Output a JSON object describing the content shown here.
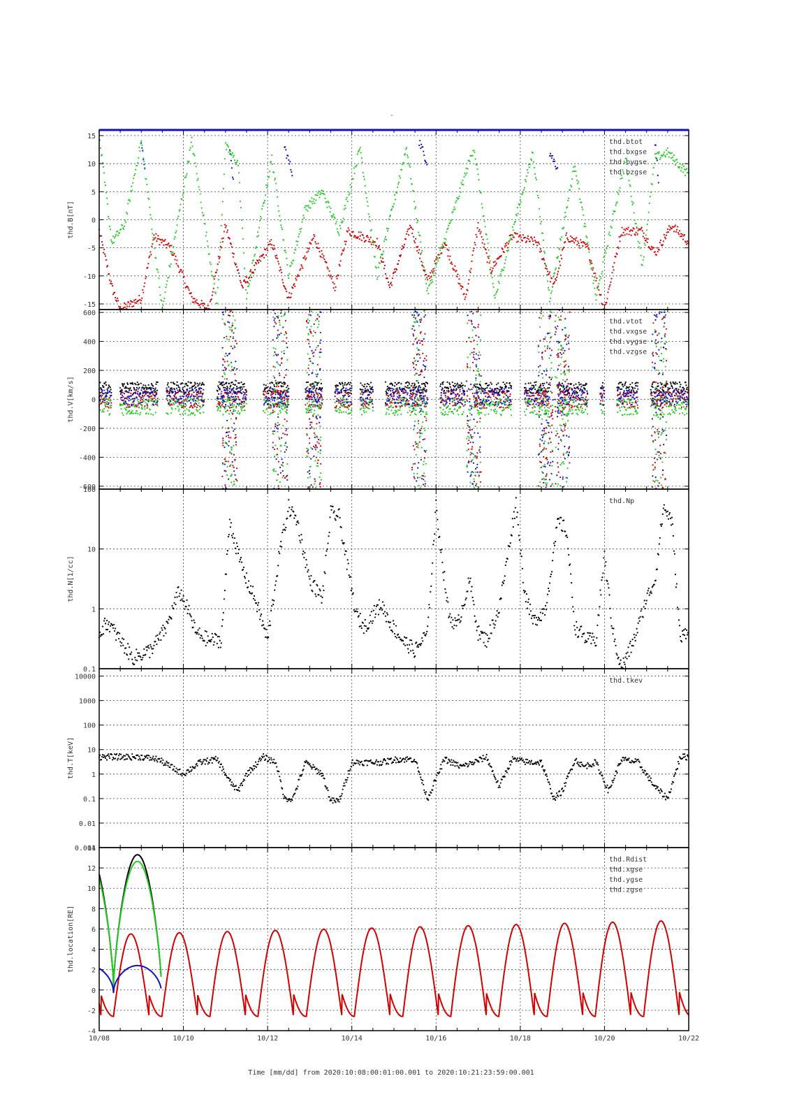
{
  "page_marker": "-",
  "colors": {
    "black": "#000000",
    "red": "#d40000",
    "green": "#22cc22",
    "blue": "#1010c8"
  },
  "x_axis": {
    "label": "Time [mm/dd]  from 2020:10:08:00:01:00.001  to  2020:10:21:23:59:00.001",
    "ticks": [
      "10/08",
      "10/10",
      "10/12",
      "10/14",
      "10/16",
      "10/18",
      "10/20",
      "10/22"
    ],
    "range_days": [
      0,
      14
    ]
  },
  "chart_data": [
    {
      "type": "scatter",
      "ylabel": "thd.B[nT]",
      "yscale": "linear",
      "ylim": [
        -16,
        16
      ],
      "yticks": [
        15,
        10,
        5,
        0,
        -5,
        -10,
        -15
      ],
      "legend": [
        "thd.btot",
        "thd.bxgse",
        "thd.bygse",
        "thd.bzgse"
      ],
      "series": [
        {
          "name": "thd.btot",
          "color": "black"
        },
        {
          "name": "thd.bxgse",
          "color": "red",
          "pattern": "descending_ramps",
          "points": [
            [
              0.0,
              -2
            ],
            [
              0.3,
              -12
            ],
            [
              0.5,
              -16
            ],
            [
              1.0,
              -14
            ],
            [
              1.3,
              -3
            ],
            [
              1.7,
              -5
            ],
            [
              2.2,
              -14
            ],
            [
              2.6,
              -16
            ],
            [
              3.0,
              -1
            ],
            [
              3.4,
              -12
            ],
            [
              4.1,
              -4
            ],
            [
              4.5,
              -14
            ],
            [
              5.1,
              -3
            ],
            [
              5.6,
              -12
            ],
            [
              5.9,
              -2
            ],
            [
              6.6,
              -4
            ],
            [
              6.9,
              -12
            ],
            [
              7.4,
              -1
            ],
            [
              7.8,
              -11
            ],
            [
              8.2,
              -4
            ],
            [
              8.7,
              -14
            ],
            [
              9.0,
              -1
            ],
            [
              9.3,
              -9
            ],
            [
              9.8,
              -3
            ],
            [
              10.4,
              -4
            ],
            [
              10.8,
              -12
            ],
            [
              11.1,
              -3
            ],
            [
              11.6,
              -5
            ],
            [
              12.0,
              -16
            ],
            [
              12.4,
              -2
            ],
            [
              12.9,
              -2
            ],
            [
              13.2,
              -6
            ],
            [
              13.6,
              -1
            ],
            [
              14.0,
              -4
            ]
          ]
        },
        {
          "name": "thd.bygse",
          "color": "blue",
          "pattern": "bursts",
          "points": [
            [
              1.0,
              13
            ],
            [
              1.1,
              9
            ],
            [
              3.1,
              12
            ],
            [
              3.2,
              6
            ],
            [
              4.1,
              14
            ],
            [
              4.4,
              13
            ],
            [
              4.6,
              8
            ],
            [
              6.7,
              14
            ],
            [
              7.6,
              14
            ],
            [
              7.8,
              10
            ],
            [
              10.7,
              12
            ],
            [
              10.9,
              9
            ],
            [
              13.2,
              14
            ],
            [
              13.3,
              6
            ]
          ]
        },
        {
          "name": "thd.bzgse",
          "color": "green",
          "pattern": "rising_ramps",
          "points": [
            [
              0.0,
              15
            ],
            [
              0.3,
              -4
            ],
            [
              0.6,
              -1
            ],
            [
              1.0,
              14
            ],
            [
              1.5,
              -16
            ],
            [
              2.2,
              14
            ],
            [
              2.8,
              -15
            ],
            [
              3.0,
              13
            ],
            [
              3.3,
              10
            ],
            [
              3.5,
              -14
            ],
            [
              4.1,
              11
            ],
            [
              4.5,
              -10
            ],
            [
              4.9,
              2
            ],
            [
              5.3,
              5
            ],
            [
              5.7,
              -2
            ],
            [
              6.2,
              13
            ],
            [
              6.6,
              -10
            ],
            [
              7.3,
              13
            ],
            [
              7.8,
              -13
            ],
            [
              8.4,
              1
            ],
            [
              8.9,
              13
            ],
            [
              9.4,
              -14
            ],
            [
              10.3,
              12
            ],
            [
              10.7,
              -14
            ],
            [
              11.3,
              10
            ],
            [
              11.8,
              -14
            ],
            [
              12.5,
              11
            ],
            [
              12.9,
              -8
            ],
            [
              13.2,
              11
            ],
            [
              13.5,
              12
            ],
            [
              14.0,
              8
            ]
          ]
        }
      ]
    },
    {
      "type": "scatter",
      "ylabel": "thd.V[km/s]",
      "yscale": "linear",
      "ylim": [
        -620,
        620
      ],
      "yticks": [
        600,
        400,
        200,
        0,
        -200,
        -400,
        -600
      ],
      "legend": [
        "thd.vtot",
        "thd.vxgse",
        "thd.vygse",
        "thd.vzgse"
      ],
      "segments": [
        [
          0.0,
          0.3
        ],
        [
          0.5,
          1.4
        ],
        [
          1.6,
          2.5
        ],
        [
          2.8,
          3.5
        ],
        [
          3.9,
          4.5
        ],
        [
          4.9,
          5.3
        ],
        [
          5.6,
          6.0
        ],
        [
          6.2,
          6.5
        ],
        [
          6.8,
          7.8
        ],
        [
          8.1,
          8.7
        ],
        [
          8.9,
          9.8
        ],
        [
          10.1,
          10.7
        ],
        [
          10.9,
          11.6
        ],
        [
          11.9,
          12.0
        ],
        [
          12.3,
          12.8
        ],
        [
          13.1,
          14.0
        ]
      ],
      "bursts": [
        [
          3.1,
          620
        ],
        [
          4.3,
          620
        ],
        [
          5.1,
          620
        ],
        [
          7.6,
          620
        ],
        [
          8.9,
          620
        ],
        [
          10.6,
          620
        ],
        [
          11.0,
          620
        ],
        [
          13.3,
          620
        ]
      ],
      "series": [
        {
          "name": "thd.vtot",
          "color": "black",
          "typical": 80
        },
        {
          "name": "thd.vxgse",
          "color": "red",
          "typical": 0
        },
        {
          "name": "thd.vygse",
          "color": "green",
          "typical": -50
        },
        {
          "name": "thd.vzgse",
          "color": "blue",
          "typical": 20
        }
      ]
    },
    {
      "type": "scatter",
      "ylabel": "thd.N[1/cc]",
      "yscale": "log",
      "ylim": [
        0.1,
        100
      ],
      "yticks": [
        100,
        10,
        1,
        0.1
      ],
      "legend": [
        "thd.Np"
      ],
      "series": [
        {
          "name": "thd.Np",
          "color": "black",
          "points": [
            [
              0.0,
              0.4
            ],
            [
              0.2,
              0.6
            ],
            [
              0.5,
              0.3
            ],
            [
              0.8,
              0.15
            ],
            [
              1.2,
              0.2
            ],
            [
              1.4,
              0.3
            ],
            [
              1.6,
              0.5
            ],
            [
              1.9,
              2.0
            ],
            [
              2.1,
              1.0
            ],
            [
              2.3,
              0.4
            ],
            [
              2.6,
              0.3
            ],
            [
              2.9,
              0.3
            ],
            [
              3.1,
              30
            ],
            [
              3.3,
              8
            ],
            [
              3.5,
              3
            ],
            [
              3.7,
              1.5
            ],
            [
              4.0,
              0.3
            ],
            [
              4.3,
              10
            ],
            [
              4.5,
              50
            ],
            [
              4.7,
              30
            ],
            [
              5.0,
              3
            ],
            [
              5.3,
              1.5
            ],
            [
              5.5,
              40
            ],
            [
              5.7,
              35
            ],
            [
              5.9,
              5
            ],
            [
              6.1,
              0.8
            ],
            [
              6.3,
              0.5
            ],
            [
              6.5,
              0.8
            ],
            [
              6.7,
              1.2
            ],
            [
              6.9,
              0.6
            ],
            [
              7.2,
              0.3
            ],
            [
              7.5,
              0.2
            ],
            [
              7.8,
              0.4
            ],
            [
              8.0,
              50
            ],
            [
              8.3,
              0.8
            ],
            [
              8.5,
              0.5
            ],
            [
              8.8,
              3
            ],
            [
              9.0,
              0.4
            ],
            [
              9.2,
              0.3
            ],
            [
              9.5,
              1
            ],
            [
              9.9,
              60
            ],
            [
              10.1,
              2
            ],
            [
              10.3,
              0.6
            ],
            [
              10.6,
              1
            ],
            [
              10.9,
              30
            ],
            [
              11.1,
              20
            ],
            [
              11.3,
              0.5
            ],
            [
              11.6,
              0.3
            ],
            [
              11.8,
              0.3
            ],
            [
              12.0,
              8
            ],
            [
              12.2,
              0.4
            ],
            [
              12.4,
              0.1
            ],
            [
              12.7,
              0.3
            ],
            [
              13.0,
              1.5
            ],
            [
              13.2,
              3
            ],
            [
              13.4,
              50
            ],
            [
              13.6,
              30
            ],
            [
              13.8,
              0.3
            ],
            [
              14.0,
              0.5
            ]
          ]
        }
      ]
    },
    {
      "type": "scatter",
      "ylabel": "thd.T[keV]",
      "yscale": "log",
      "ylim": [
        0.001,
        20000
      ],
      "yticks": [
        10000,
        1000,
        100,
        10,
        1,
        0.1,
        0.01,
        0.001
      ],
      "legend": [
        "thd.tkev"
      ],
      "series": [
        {
          "name": "thd.tkev",
          "color": "black",
          "points": [
            [
              0.0,
              5
            ],
            [
              0.5,
              5
            ],
            [
              1.0,
              5
            ],
            [
              1.4,
              4
            ],
            [
              1.7,
              2
            ],
            [
              2.0,
              1
            ],
            [
              2.4,
              3
            ],
            [
              2.8,
              4
            ],
            [
              3.1,
              0.5
            ],
            [
              3.3,
              0.2
            ],
            [
              3.5,
              1
            ],
            [
              3.9,
              5
            ],
            [
              4.2,
              3
            ],
            [
              4.4,
              0.1
            ],
            [
              4.6,
              0.1
            ],
            [
              4.9,
              3
            ],
            [
              5.3,
              1
            ],
            [
              5.5,
              0.08
            ],
            [
              5.7,
              0.08
            ],
            [
              6.0,
              3
            ],
            [
              6.3,
              3
            ],
            [
              6.7,
              3
            ],
            [
              7.1,
              4
            ],
            [
              7.5,
              4
            ],
            [
              7.8,
              0.1
            ],
            [
              8.2,
              4
            ],
            [
              8.6,
              2
            ],
            [
              8.9,
              3
            ],
            [
              9.2,
              5
            ],
            [
              9.5,
              0.3
            ],
            [
              9.8,
              4
            ],
            [
              10.2,
              3
            ],
            [
              10.5,
              3
            ],
            [
              10.8,
              0.1
            ],
            [
              11.0,
              0.2
            ],
            [
              11.3,
              4
            ],
            [
              11.5,
              2
            ],
            [
              11.8,
              3
            ],
            [
              12.1,
              0.2
            ],
            [
              12.4,
              4
            ],
            [
              12.8,
              3
            ],
            [
              13.2,
              0.3
            ],
            [
              13.5,
              0.1
            ],
            [
              13.8,
              5
            ],
            [
              14.0,
              5
            ]
          ]
        }
      ]
    },
    {
      "type": "line",
      "ylabel": "thd.location[RE]",
      "yscale": "linear",
      "ylim": [
        -4,
        14
      ],
      "yticks": [
        14,
        12,
        10,
        8,
        6,
        4,
        2,
        0,
        -2,
        -4
      ],
      "legend": [
        "thd.Rdist",
        "thd.xgse",
        "thd.ygse",
        "thd.zgse"
      ],
      "orbit": {
        "period_days": 1.14,
        "perigee_at": [
          0.34,
          1.49,
          2.63,
          3.77,
          4.92,
          6.06,
          7.21,
          8.35,
          9.49,
          10.64,
          11.78,
          12.93
        ]
      },
      "series": [
        {
          "name": "thd.Rdist",
          "color": "black",
          "max": 13.3,
          "min": 0.5
        },
        {
          "name": "thd.xgse",
          "color": "green",
          "max_start": 12.7,
          "max_end": 11.9,
          "min": 0.3
        },
        {
          "name": "thd.ygse",
          "color": "red",
          "max_start": 5.9,
          "max_end": 7.4,
          "min": -2.6
        },
        {
          "name": "thd.zgse",
          "color": "blue",
          "max": 2.4,
          "min": -0.3
        }
      ]
    }
  ]
}
